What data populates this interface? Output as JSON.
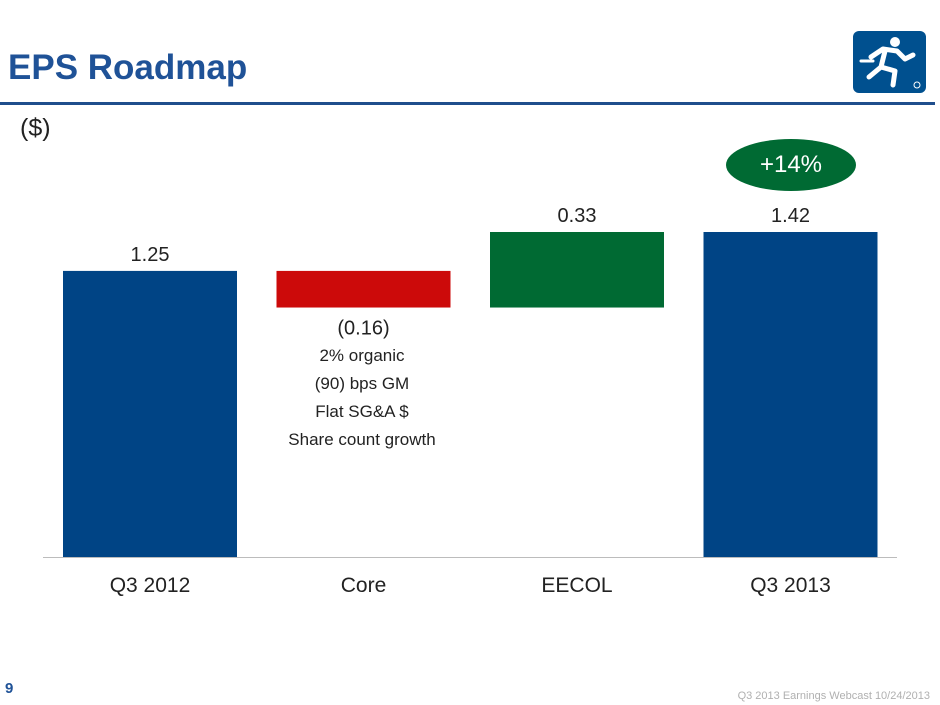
{
  "slide": {
    "title": "EPS Roadmap",
    "unit_label": "($)",
    "page_number": "9",
    "footer": "Q3 2013 Earnings Webcast 10/24/2013",
    "growth_badge": "+14%",
    "core_notes": [
      "2% organic",
      "(90) bps GM",
      "Flat SG&A $",
      "Share count growth"
    ]
  },
  "colors": {
    "title": "#1f5297",
    "total_bar": "#004485",
    "decrease_bar": "#cc0a0a",
    "increase_bar": "#006a33",
    "badge": "#006a33"
  },
  "chart_data": {
    "type": "bar",
    "subtype": "waterfall",
    "categories": [
      "Q3 2012",
      "Core",
      "EECOL",
      "Q3 2013"
    ],
    "values": [
      1.25,
      -0.16,
      0.33,
      1.42
    ],
    "value_labels": [
      "1.25",
      "(0.16)",
      "0.33",
      "1.42"
    ],
    "kinds": [
      "total",
      "decrease",
      "increase",
      "total"
    ],
    "ylim": [
      0,
      1.42
    ],
    "title": "",
    "xlabel": "",
    "ylabel": "",
    "grid": false,
    "legend": "none"
  }
}
